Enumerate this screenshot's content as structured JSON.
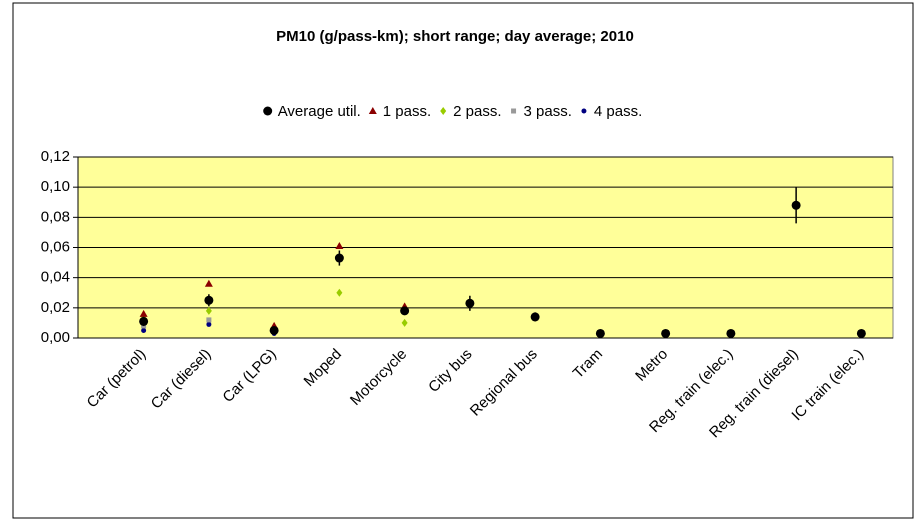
{
  "chart_data": {
    "type": "scatter",
    "title": "PM10 (g/pass-km); short range; day average; 2010",
    "categories": [
      "Car (petrol)",
      "Car (diesel)",
      "Car (LPG)",
      "Moped",
      "Motorcycle",
      "City bus",
      "Regional bus",
      "Tram",
      "Metro",
      "Reg. train (elec.)",
      "Reg. train (diesel)",
      "IC train (elec.)"
    ],
    "series": [
      {
        "name": "Average util.",
        "color": "#000000",
        "marker": "circle",
        "values": [
          0.011,
          0.025,
          0.005,
          0.053,
          0.018,
          0.023,
          0.014,
          0.003,
          0.003,
          0.003,
          0.088,
          0.003
        ],
        "errors": [
          0.003,
          0.004,
          0.002,
          0.005,
          0.002,
          0.005,
          0.003,
          null,
          null,
          null,
          0.012,
          null
        ]
      },
      {
        "name": "1 pass.",
        "color": "#8b0000",
        "marker": "triangle",
        "values": [
          0.016,
          0.036,
          0.008,
          0.061,
          0.021,
          null,
          null,
          null,
          null,
          null,
          null,
          null
        ]
      },
      {
        "name": "2 pass.",
        "color": "#99cc00",
        "marker": "diamond",
        "values": [
          0.013,
          0.018,
          0.006,
          0.03,
          0.01,
          null,
          null,
          null,
          null,
          null,
          null,
          null
        ]
      },
      {
        "name": "3 pass.",
        "color": "#999999",
        "marker": "square",
        "values": [
          0.008,
          0.012,
          0.004,
          null,
          null,
          null,
          null,
          null,
          null,
          null,
          null,
          null
        ]
      },
      {
        "name": "4 pass.",
        "color": "#000080",
        "marker": "dot",
        "values": [
          0.005,
          0.009,
          0.003,
          null,
          null,
          null,
          null,
          null,
          null,
          null,
          null,
          null
        ]
      }
    ],
    "ylim": [
      0,
      0.12
    ],
    "yticks": [
      {
        "value": 0,
        "label": "0,00"
      },
      {
        "value": 0.02,
        "label": "0,02"
      },
      {
        "value": 0.04,
        "label": "0,04"
      },
      {
        "value": 0.06,
        "label": "0,06"
      },
      {
        "value": 0.08,
        "label": "0,08"
      },
      {
        "value": 0.1,
        "label": "0,10"
      },
      {
        "value": 0.12,
        "label": "0,12"
      }
    ],
    "grid": true,
    "plot_background": "#ffff99",
    "legend": "top"
  }
}
